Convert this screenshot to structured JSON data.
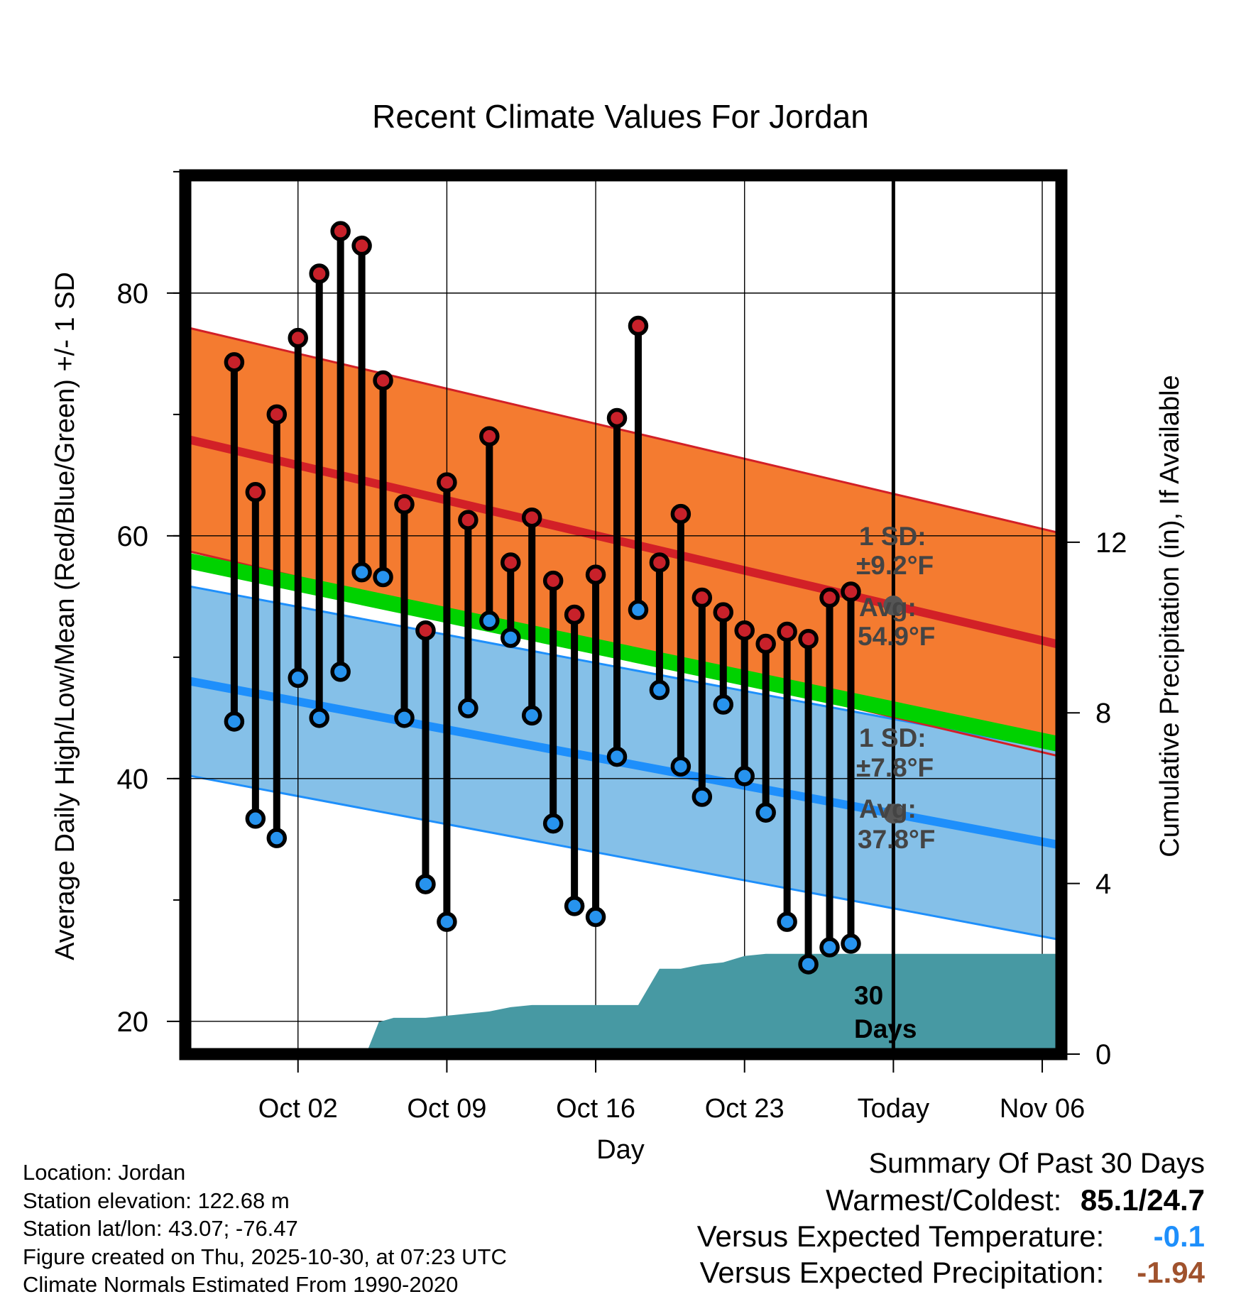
{
  "chart_data": {
    "type": "line",
    "title": "Recent Climate Values For Jordan",
    "xlabel": "Day",
    "ylabel": "Average Daily High/Low/Mean (Red/Blue/Green) +/- 1 SD",
    "y2label": "Cumulative Precipitation (in), If Available",
    "ylim": [
      17.3,
      89.7
    ],
    "y2lim": [
      0,
      20.6
    ],
    "yticks": [
      20,
      40,
      60,
      80
    ],
    "y2ticks": [
      0,
      4,
      8,
      12
    ],
    "x_range_days": [
      -3.3,
      37.9
    ],
    "xticks": [
      {
        "day": 2,
        "label": "Oct 02"
      },
      {
        "day": 9,
        "label": "Oct 09"
      },
      {
        "day": 16,
        "label": "Oct 16"
      },
      {
        "day": 23,
        "label": "Oct 23"
      },
      {
        "day": 30,
        "label": "Today"
      },
      {
        "day": 37,
        "label": "Nov 06"
      }
    ],
    "today_day": 30,
    "normal_high": {
      "start": 68.0,
      "end": 51.0
    },
    "normal_high_sd": 9.2,
    "normal_low": {
      "start": 48.1,
      "end": 34.5
    },
    "normal_low_sd": 7.8,
    "normal_mean": {
      "start": 58.0,
      "end": 42.8
    },
    "daily": [
      {
        "day": -1,
        "high": 74.3,
        "low": 44.7
      },
      {
        "day": 0,
        "high": 63.6,
        "low": 36.7
      },
      {
        "day": 1,
        "high": 70.0,
        "low": 35.1
      },
      {
        "day": 2,
        "high": 76.3,
        "low": 48.3
      },
      {
        "day": 3,
        "high": 81.6,
        "low": 45.0
      },
      {
        "day": 4,
        "high": 85.1,
        "low": 48.8
      },
      {
        "day": 5,
        "high": 83.9,
        "low": 57.0
      },
      {
        "day": 6,
        "high": 72.8,
        "low": 56.6
      },
      {
        "day": 7,
        "high": 62.6,
        "low": 45.0
      },
      {
        "day": 8,
        "high": 52.2,
        "low": 31.3
      },
      {
        "day": 9,
        "high": 64.4,
        "low": 28.2
      },
      {
        "day": 10,
        "high": 61.3,
        "low": 45.8
      },
      {
        "day": 11,
        "high": 68.2,
        "low": 53.0
      },
      {
        "day": 12,
        "high": 57.8,
        "low": 51.6
      },
      {
        "day": 13,
        "high": 61.5,
        "low": 45.2
      },
      {
        "day": 14,
        "high": 56.3,
        "low": 36.3
      },
      {
        "day": 15,
        "high": 53.5,
        "low": 29.5
      },
      {
        "day": 16,
        "high": 56.8,
        "low": 28.6
      },
      {
        "day": 17,
        "high": 69.7,
        "low": 41.8
      },
      {
        "day": 18,
        "high": 77.3,
        "low": 53.9
      },
      {
        "day": 19,
        "high": 57.8,
        "low": 47.3
      },
      {
        "day": 20,
        "high": 61.8,
        "low": 41.0
      },
      {
        "day": 21,
        "high": 54.9,
        "low": 38.5
      },
      {
        "day": 22,
        "high": 53.7,
        "low": 46.1
      },
      {
        "day": 23,
        "high": 52.2,
        "low": 40.2
      },
      {
        "day": 24,
        "high": 51.1,
        "low": 37.2
      },
      {
        "day": 25,
        "high": 52.1,
        "low": 28.2
      },
      {
        "day": 26,
        "high": 51.5,
        "low": 24.7
      },
      {
        "day": 27,
        "high": 54.9,
        "low": 26.1
      },
      {
        "day": 28,
        "high": 55.4,
        "low": 26.4
      }
    ],
    "precip_cumulative": [
      [
        5.2,
        0.0
      ],
      [
        5.8,
        0.75
      ],
      [
        6.5,
        0.85
      ],
      [
        8.0,
        0.85
      ],
      [
        9.0,
        0.9
      ],
      [
        10.0,
        0.95
      ],
      [
        11.0,
        1.0
      ],
      [
        12.0,
        1.1
      ],
      [
        13.0,
        1.15
      ],
      [
        14.0,
        1.15
      ],
      [
        15.0,
        1.15
      ],
      [
        16.0,
        1.15
      ],
      [
        17.0,
        1.15
      ],
      [
        18.0,
        1.15
      ],
      [
        19.0,
        2.0
      ],
      [
        20.0,
        2.0
      ],
      [
        21.0,
        2.1
      ],
      [
        22.0,
        2.15
      ],
      [
        23.0,
        2.3
      ],
      [
        24.0,
        2.35
      ],
      [
        37.9,
        2.35
      ]
    ],
    "annotations": {
      "high_sd_line1": "1 SD:",
      "high_sd_line2": "±9.2°F",
      "high_avg_line1": "Avg:",
      "high_avg_line2": "54.9°F",
      "low_sd_line1": "1 SD:",
      "low_sd_line2": "±7.8°F",
      "low_avg_line1": "Avg:",
      "low_avg_line2": "37.8°F",
      "period_line1": "30",
      "period_line2": "Days"
    },
    "colors": {
      "high_band": "#f47b30",
      "high_line": "#d22027",
      "low_band": "#85c0e8",
      "low_line": "#1e8ffb",
      "mean_band": "#00d200",
      "precip": "#4799a3",
      "high_dot": "#c8212a",
      "low_dot": "#2793ee",
      "marker": "#555555",
      "annotation": "#444444"
    }
  },
  "footer": {
    "location": "Location: Jordan",
    "elevation": "Station elevation: 122.68 m",
    "latlon": "Station lat/lon: 43.07; -76.47",
    "created": "Figure created on Thu, 2025-10-30, at 07:23 UTC",
    "normals": "Climate Normals Estimated From 1990-2020"
  },
  "summary": {
    "title": "Summary Of Past 30 Days",
    "warm_cold_label": "Warmest/Coldest:",
    "warm_cold_value": "85.1/24.7",
    "temp_label": "Versus Expected Temperature:",
    "temp_value": "-0.1",
    "temp_color": "#1e8ffb",
    "precip_label": "Versus Expected Precipitation:",
    "precip_value": "-1.94",
    "precip_color": "#a0522d"
  }
}
